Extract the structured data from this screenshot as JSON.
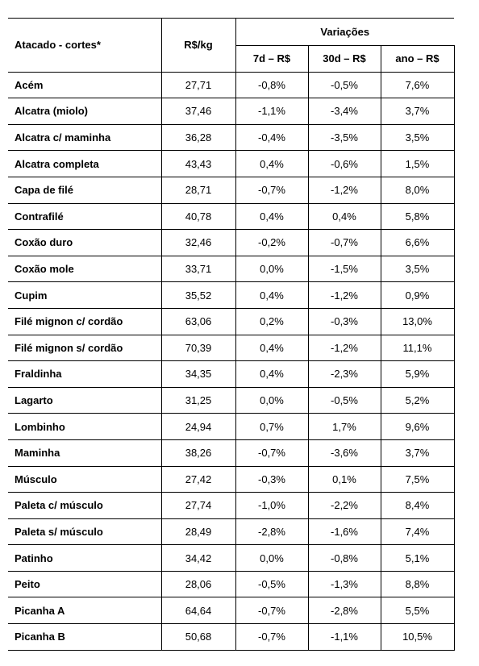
{
  "table": {
    "header": {
      "cut": "Atacado - cortes*",
      "price": "R$/kg",
      "group": "Variações",
      "sub": [
        "7d – R$",
        "30d – R$",
        "ano – R$"
      ]
    },
    "rows": [
      [
        "Acém",
        "27,71",
        "-0,8%",
        "-0,5%",
        "7,6%"
      ],
      [
        "Alcatra (miolo)",
        "37,46",
        "-1,1%",
        "-3,4%",
        "3,7%"
      ],
      [
        "Alcatra c/ maminha",
        "36,28",
        "-0,4%",
        "-3,5%",
        "3,5%"
      ],
      [
        "Alcatra completa",
        "43,43",
        "0,4%",
        "-0,6%",
        "1,5%"
      ],
      [
        "Capa de filé",
        "28,71",
        "-0,7%",
        "-1,2%",
        "8,0%"
      ],
      [
        "Contrafilé",
        "40,78",
        "0,4%",
        "0,4%",
        "5,8%"
      ],
      [
        "Coxão duro",
        "32,46",
        "-0,2%",
        "-0,7%",
        "6,6%"
      ],
      [
        "Coxão mole",
        "33,71",
        "0,0%",
        "-1,5%",
        "3,5%"
      ],
      [
        "Cupim",
        "35,52",
        "0,4%",
        "-1,2%",
        "0,9%"
      ],
      [
        "Filé mignon c/ cordão",
        "63,06",
        "0,2%",
        "-0,3%",
        "13,0%"
      ],
      [
        "Filé mignon s/ cordão",
        "70,39",
        "0,4%",
        "-1,2%",
        "11,1%"
      ],
      [
        "Fraldinha",
        "34,35",
        "0,4%",
        "-2,3%",
        "5,9%"
      ],
      [
        "Lagarto",
        "31,25",
        "0,0%",
        "-0,5%",
        "5,2%"
      ],
      [
        "Lombinho",
        "24,94",
        "0,7%",
        "1,7%",
        "9,6%"
      ],
      [
        "Maminha",
        "38,26",
        "-0,7%",
        "-3,6%",
        "3,7%"
      ],
      [
        "Músculo",
        "27,42",
        "-0,3%",
        "0,1%",
        "7,5%"
      ],
      [
        "Paleta c/ músculo",
        "27,74",
        "-1,0%",
        "-2,2%",
        "8,4%"
      ],
      [
        "Paleta s/ músculo",
        "28,49",
        "-2,8%",
        "-1,6%",
        "7,4%"
      ],
      [
        "Patinho",
        "34,42",
        "0,0%",
        "-0,8%",
        "5,1%"
      ],
      [
        "Peito",
        "28,06",
        "-0,5%",
        "-1,3%",
        "8,8%"
      ],
      [
        "Picanha A",
        "64,64",
        "-0,7%",
        "-2,8%",
        "5,5%"
      ],
      [
        "Picanha B",
        "50,68",
        "-0,7%",
        "-1,1%",
        "10,5%"
      ]
    ]
  }
}
